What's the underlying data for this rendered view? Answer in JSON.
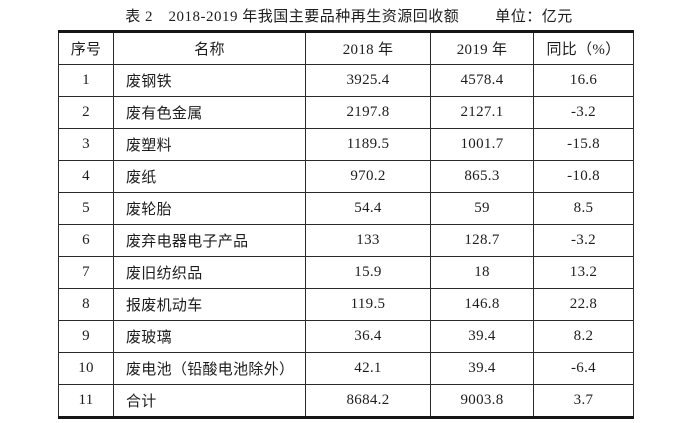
{
  "title": {
    "label": "表 2　2018-2019 年我国主要品种再生资源回收额",
    "unit": "单位：亿元"
  },
  "table": {
    "headers": [
      "序号",
      "名称",
      "2018 年",
      "2019 年",
      "同比（%）"
    ],
    "rows": [
      {
        "no": "1",
        "name": "废钢铁",
        "y2018": "3925.4",
        "y2019": "4578.4",
        "yoy": "16.6"
      },
      {
        "no": "2",
        "name": "废有色金属",
        "y2018": "2197.8",
        "y2019": "2127.1",
        "yoy": "-3.2"
      },
      {
        "no": "3",
        "name": "废塑料",
        "y2018": "1189.5",
        "y2019": "1001.7",
        "yoy": "-15.8"
      },
      {
        "no": "4",
        "name": "废纸",
        "y2018": "970.2",
        "y2019": "865.3",
        "yoy": "-10.8"
      },
      {
        "no": "5",
        "name": "废轮胎",
        "y2018": "54.4",
        "y2019": "59",
        "yoy": "8.5"
      },
      {
        "no": "6",
        "name": "废弃电器电子产品",
        "y2018": "133",
        "y2019": "128.7",
        "yoy": "-3.2"
      },
      {
        "no": "7",
        "name": "废旧纺织品",
        "y2018": "15.9",
        "y2019": "18",
        "yoy": "13.2"
      },
      {
        "no": "8",
        "name": "报废机动车",
        "y2018": "119.5",
        "y2019": "146.8",
        "yoy": "22.8"
      },
      {
        "no": "9",
        "name": "废玻璃",
        "y2018": "36.4",
        "y2019": "39.4",
        "yoy": "8.2"
      },
      {
        "no": "10",
        "name": "废电池（铅酸电池除外）",
        "y2018": "42.1",
        "y2019": "39.4",
        "yoy": "-6.4"
      },
      {
        "no": "11",
        "name": "合计",
        "y2018": "8684.2",
        "y2019": "9003.8",
        "yoy": "3.7"
      }
    ]
  }
}
